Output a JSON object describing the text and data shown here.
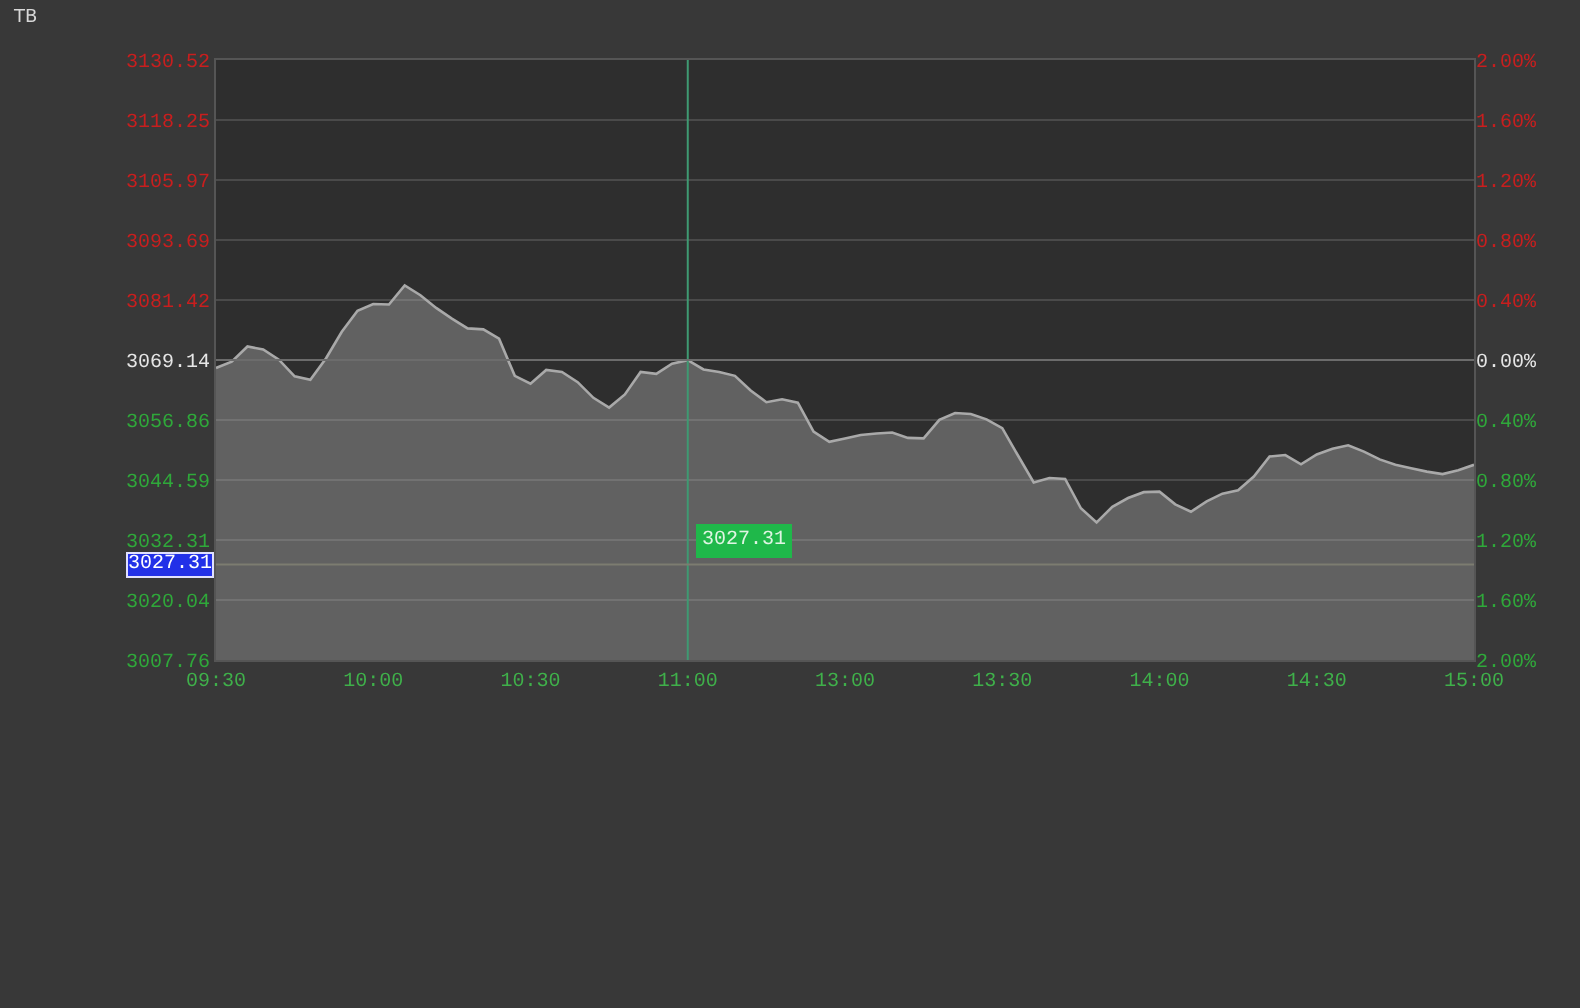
{
  "chart_data": {
    "type": "area",
    "annotations": [
      "TB"
    ],
    "categories": [
      "09:30",
      null,
      null,
      null,
      null,
      null,
      null,
      null,
      null,
      null,
      "10:00",
      null,
      null,
      null,
      null,
      null,
      null,
      null,
      null,
      null,
      "10:30",
      null,
      null,
      null,
      null,
      null,
      null,
      null,
      null,
      null,
      "11:00",
      null,
      null,
      null,
      null,
      null,
      null,
      null,
      null,
      null,
      "13:00",
      null,
      null,
      null,
      null,
      null,
      null,
      null,
      null,
      null,
      "13:30",
      null,
      null,
      null,
      null,
      null,
      null,
      null,
      null,
      null,
      "14:00",
      null,
      null,
      null,
      null,
      null,
      null,
      null,
      null,
      null,
      "14:30",
      null,
      null,
      null,
      null,
      null,
      null,
      null,
      null,
      null,
      "15:00"
    ],
    "series": [
      {
        "color": "#a9a9a9",
        "values": [
          3067.5,
          3068.8,
          3071.9,
          3071.3,
          3069.2,
          3065.8,
          3065.1,
          3069.5,
          3074.9,
          3079.2,
          3080.6,
          3080.5,
          3084.4,
          3082.4,
          3079.8,
          3077.6,
          3075.6,
          3075.4,
          3073.5,
          3065.9,
          3064.3,
          3067.1,
          3066.7,
          3064.6,
          3061.4,
          3059.4,
          3062.1,
          3066.7,
          3066.3,
          3068.4,
          3069.1,
          3067.2,
          3066.7,
          3065.9,
          3062.9,
          3060.5,
          3061.1,
          3060.4,
          3054.5,
          3052.4,
          3053.1,
          3053.8,
          3054.1,
          3054.3,
          3053.2,
          3053.1,
          3056.9,
          3058.3,
          3058.1,
          3057.0,
          3055.2,
          3049.6,
          3044.1,
          3045.0,
          3044.8,
          3038.8,
          3035.9,
          3039.1,
          3040.9,
          3042.1,
          3042.2,
          3039.6,
          3038.1,
          3040.2,
          3041.8,
          3042.5,
          3045.3,
          3049.4,
          3049.7,
          3047.8,
          3049.8,
          3051.0,
          3051.7,
          3050.4,
          3048.8,
          3047.7,
          3047.0,
          3046.3,
          3045.8,
          3046.6,
          3047.7
        ]
      }
    ],
    "ylim": [
      3007.76,
      3130.52
    ],
    "yticks": [
      3007.76,
      3020.04,
      3032.31,
      3044.59,
      3056.86,
      3069.14,
      3081.42,
      3093.69,
      3105.97,
      3118.25,
      3130.52
    ],
    "y2lim": [
      -2.0,
      2.0
    ],
    "y2ticks": [
      {
        "value": -2.0,
        "label": "2.00%"
      },
      {
        "value": -1.6,
        "label": "1.60%"
      },
      {
        "value": -1.2,
        "label": "1.20%"
      },
      {
        "value": -0.8,
        "label": "0.80%"
      },
      {
        "value": -0.4,
        "label": "0.40%"
      },
      {
        "value": 0.0,
        "label": "0.00%"
      },
      {
        "value": 0.4,
        "label": "0.40%"
      },
      {
        "value": 0.8,
        "label": "0.80%"
      },
      {
        "value": 1.2,
        "label": "1.20%"
      },
      {
        "value": 1.6,
        "label": "1.60%"
      },
      {
        "value": 2.0,
        "label": "2.00%"
      }
    ],
    "ref_lines": [
      {
        "axis": "y2",
        "value": 0.0,
        "color": "#6c6c6c"
      },
      {
        "axis": "x",
        "value": "11:00",
        "color": "#3f9a72"
      },
      {
        "axis": "y",
        "value": 3027.31,
        "label": "3027.31",
        "color": "#7c7c70"
      }
    ],
    "grid": "y"
  }
}
